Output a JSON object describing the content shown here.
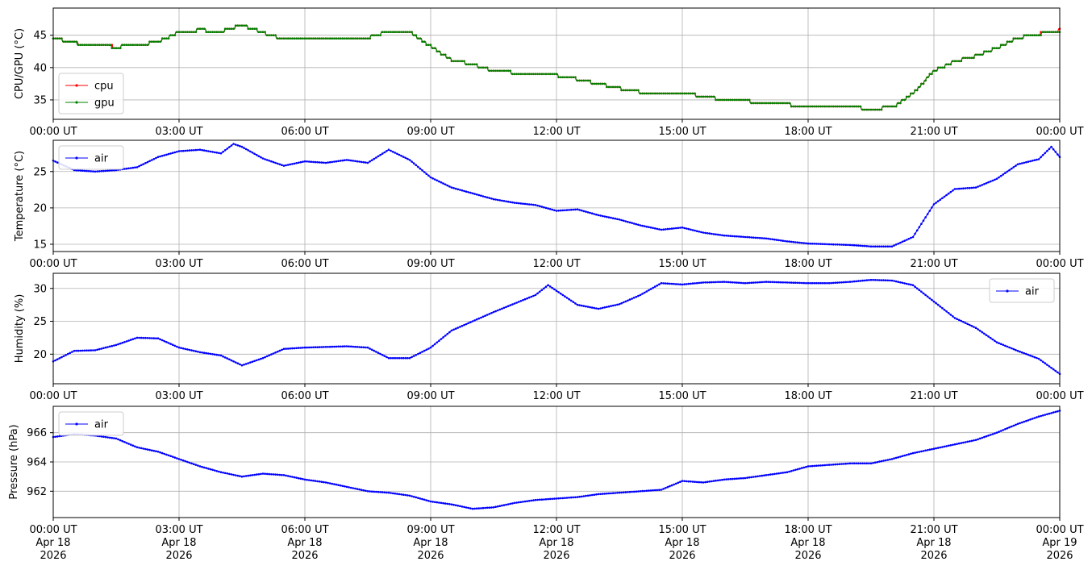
{
  "colors": {
    "cpu": "#ff0000",
    "gpu": "#008000",
    "air": "#0000ff",
    "grid": "#b0b0b0"
  },
  "x_ticks": [
    "00:00 UT",
    "03:00 UT",
    "06:00 UT",
    "09:00 UT",
    "12:00 UT",
    "15:00 UT",
    "18:00 UT",
    "21:00 UT",
    "00:00 UT"
  ],
  "x_date_lines": [
    [
      "Apr 18",
      "2026"
    ],
    [
      "Apr 18",
      "2026"
    ],
    [
      "Apr 18",
      "2026"
    ],
    [
      "Apr 18",
      "2026"
    ],
    [
      "Apr 18",
      "2026"
    ],
    [
      "Apr 18",
      "2026"
    ],
    [
      "Apr 18",
      "2026"
    ],
    [
      "Apr 18",
      "2026"
    ],
    [
      "Apr 19",
      "2026"
    ]
  ],
  "chart_data": [
    {
      "type": "line",
      "ylabel": "CPU/GPU (°C)",
      "xlim": [
        "2026-04-18 00:00",
        "2026-04-19 00:00"
      ],
      "ylim": [
        32,
        49.2
      ],
      "yticks": [
        35,
        40,
        45
      ],
      "grid": true,
      "legend_position": "lower-left",
      "x_hours": [
        0,
        0.5,
        1,
        1.5,
        2,
        2.5,
        3,
        3.5,
        4,
        4.5,
        5,
        5.5,
        6,
        6.5,
        7,
        7.5,
        8,
        8.5,
        9,
        9.5,
        10,
        10.5,
        11,
        11.5,
        12,
        12.5,
        13,
        13.5,
        14,
        14.5,
        15,
        15.5,
        16,
        16.5,
        17,
        17.5,
        18,
        18.5,
        19,
        19.5,
        20,
        20.5,
        21,
        21.5,
        22,
        22.5,
        23,
        23.5,
        24
      ],
      "series": [
        {
          "name": "cpu",
          "values": [
            44.6,
            43.8,
            43.5,
            43.2,
            43.4,
            44.0,
            45.5,
            45.8,
            45.6,
            46.6,
            45.4,
            44.4,
            44.5,
            44.7,
            44.7,
            44.6,
            45.6,
            45.5,
            43.3,
            41.2,
            40.5,
            39.5,
            39.2,
            38.8,
            38.8,
            38.2,
            37.5,
            36.8,
            36.2,
            36.0,
            36.0,
            35.6,
            35.0,
            34.8,
            34.6,
            34.3,
            34.0,
            34.0,
            33.8,
            33.7,
            33.8,
            36.0,
            39.5,
            41.0,
            41.8,
            43.0,
            44.6,
            45.2,
            45.8
          ]
        },
        {
          "name": "gpu",
          "values": [
            44.6,
            43.8,
            43.4,
            43.2,
            43.4,
            44.0,
            45.5,
            45.8,
            45.6,
            46.6,
            45.4,
            44.4,
            44.5,
            44.7,
            44.7,
            44.6,
            45.6,
            45.5,
            43.3,
            41.2,
            40.5,
            39.5,
            39.2,
            38.8,
            38.8,
            38.2,
            37.5,
            36.8,
            36.2,
            36.0,
            36.0,
            35.6,
            35.0,
            34.8,
            34.6,
            34.3,
            34.0,
            34.0,
            33.8,
            33.7,
            33.8,
            36.0,
            39.5,
            41.0,
            41.8,
            43.0,
            44.6,
            45.2,
            45.6
          ]
        }
      ]
    },
    {
      "type": "line",
      "ylabel": "Temperature (°C)",
      "xlim": [
        "2026-04-18 00:00",
        "2026-04-19 00:00"
      ],
      "ylim": [
        14,
        29.3
      ],
      "yticks": [
        15,
        20,
        25
      ],
      "grid": true,
      "legend_position": "upper-left",
      "x_hours": [
        0,
        0.5,
        1,
        1.5,
        2,
        2.5,
        3,
        3.5,
        4,
        4.3,
        4.5,
        5,
        5.5,
        6,
        6.5,
        7,
        7.5,
        8,
        8.5,
        9,
        9.5,
        10,
        10.5,
        11,
        11.5,
        12,
        12.5,
        13,
        13.5,
        14,
        14.5,
        15,
        15.5,
        16,
        16.5,
        17,
        17.5,
        18,
        18.5,
        19,
        19.5,
        20,
        20.5,
        21,
        21.5,
        22,
        22.5,
        23,
        23.5,
        23.8,
        24
      ],
      "series": [
        {
          "name": "air",
          "values": [
            26.5,
            25.2,
            25.0,
            25.2,
            25.6,
            27.0,
            27.8,
            28.0,
            27.5,
            28.8,
            28.4,
            26.8,
            25.8,
            26.4,
            26.2,
            26.6,
            26.2,
            28.0,
            26.6,
            24.2,
            22.8,
            22.0,
            21.2,
            20.7,
            20.4,
            19.6,
            19.8,
            19.0,
            18.4,
            17.6,
            17.0,
            17.3,
            16.6,
            16.2,
            16.0,
            15.8,
            15.4,
            15.1,
            15.0,
            14.9,
            14.7,
            14.7,
            16.0,
            20.5,
            22.6,
            22.8,
            24.0,
            26.0,
            26.7,
            28.4,
            27.0
          ]
        }
      ]
    },
    {
      "type": "line",
      "ylabel": "Humidity (%)",
      "xlim": [
        "2026-04-18 00:00",
        "2026-04-19 00:00"
      ],
      "ylim": [
        15.5,
        32.3
      ],
      "yticks": [
        20,
        25,
        30
      ],
      "grid": true,
      "legend_position": "upper-right",
      "x_hours": [
        0,
        0.5,
        1,
        1.5,
        2,
        2.5,
        3,
        3.5,
        4,
        4.5,
        5,
        5.5,
        6,
        6.5,
        7,
        7.5,
        8,
        8.5,
        9,
        9.5,
        10,
        10.5,
        11,
        11.5,
        11.8,
        12.5,
        13,
        13.5,
        14,
        14.5,
        15,
        15.5,
        16,
        16.5,
        17,
        17.5,
        18,
        18.5,
        19,
        19.5,
        20,
        20.5,
        21,
        21.5,
        22,
        22.5,
        23,
        23.5,
        24
      ],
      "series": [
        {
          "name": "air",
          "values": [
            18.9,
            20.5,
            20.6,
            21.4,
            22.5,
            22.4,
            21.0,
            20.3,
            19.8,
            18.3,
            19.4,
            20.8,
            21.0,
            21.1,
            21.2,
            21.0,
            19.4,
            19.4,
            21.0,
            23.6,
            25.0,
            26.4,
            27.7,
            29.0,
            30.5,
            27.5,
            26.9,
            27.6,
            29.0,
            30.8,
            30.6,
            30.9,
            31.0,
            30.8,
            31.0,
            30.9,
            30.8,
            30.8,
            31.0,
            31.3,
            31.2,
            30.5,
            28.0,
            25.5,
            24.0,
            21.8,
            20.5,
            19.3,
            17.0
          ]
        }
      ]
    },
    {
      "type": "line",
      "ylabel": "Pressure (hPa)",
      "xlim": [
        "2026-04-18 00:00",
        "2026-04-19 00:00"
      ],
      "ylim": [
        960.2,
        967.8
      ],
      "yticks": [
        962,
        964,
        966
      ],
      "grid": true,
      "legend_position": "upper-left",
      "x_hours": [
        0,
        0.5,
        1,
        1.5,
        2,
        2.5,
        3,
        3.5,
        4,
        4.5,
        5,
        5.5,
        6,
        6.5,
        7,
        7.5,
        8,
        8.5,
        9,
        9.5,
        10,
        10.5,
        11,
        11.5,
        12,
        12.5,
        13,
        13.5,
        14,
        14.5,
        15,
        15.5,
        16,
        16.5,
        17,
        17.5,
        18,
        18.5,
        19,
        19.5,
        20,
        20.5,
        21,
        21.5,
        22,
        22.5,
        23,
        23.5,
        24
      ],
      "series": [
        {
          "name": "air",
          "values": [
            965.7,
            965.9,
            965.8,
            965.6,
            965.0,
            964.7,
            964.2,
            963.7,
            963.3,
            963.0,
            963.2,
            963.1,
            962.8,
            962.6,
            962.3,
            962.0,
            961.9,
            961.7,
            961.3,
            961.1,
            960.8,
            960.9,
            961.2,
            961.4,
            961.5,
            961.6,
            961.8,
            961.9,
            962.0,
            962.1,
            962.7,
            962.6,
            962.8,
            962.9,
            963.1,
            963.3,
            963.7,
            963.8,
            963.9,
            963.9,
            964.2,
            964.6,
            964.9,
            965.2,
            965.5,
            966.0,
            966.6,
            967.1,
            967.5
          ]
        }
      ]
    }
  ]
}
